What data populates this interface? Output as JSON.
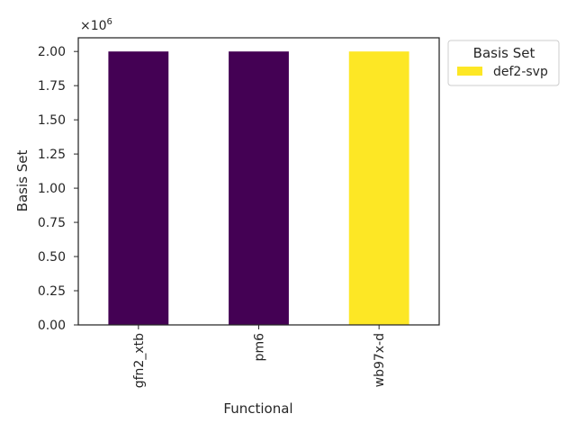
{
  "chart_data": {
    "type": "bar",
    "categories": [
      "gfn2_xtb",
      "pm6",
      "wb97x-d"
    ],
    "values": [
      2000000,
      2000000,
      2000000
    ],
    "bar_colors": [
      "#440154",
      "#440154",
      "#fde725"
    ],
    "xlabel": "Functional",
    "ylabel": "Basis Set",
    "ylim": [
      0,
      2100000
    ],
    "yticks": [
      0,
      250000,
      500000,
      750000,
      1000000,
      1250000,
      1500000,
      1750000,
      2000000
    ],
    "ytick_labels": [
      "0.00",
      "0.25",
      "0.50",
      "0.75",
      "1.00",
      "1.25",
      "1.50",
      "1.75",
      "2.00"
    ],
    "offset_base": "×10",
    "offset_exp": "6",
    "grid": false,
    "legend": {
      "title": "Basis Set",
      "placement": "outside-top-right",
      "entries": [
        {
          "label": "def2-svp",
          "color": "#fde725"
        }
      ]
    }
  }
}
